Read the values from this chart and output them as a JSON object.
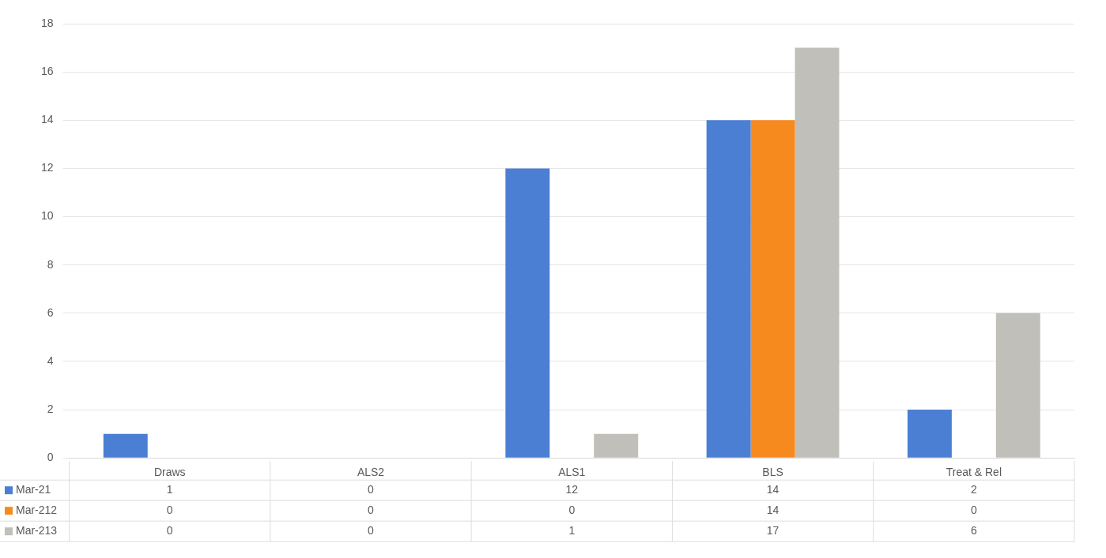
{
  "chart_data": {
    "type": "bar",
    "categories": [
      "Draws",
      "ALS2",
      "ALS1",
      "BLS",
      "Treat & Rel"
    ],
    "series": [
      {
        "name": "Mar-21",
        "color": "#4a7fd4",
        "values": [
          1,
          0,
          12,
          14,
          2
        ]
      },
      {
        "name": "Mar-212",
        "color": "#f78a1e",
        "values": [
          0,
          0,
          0,
          14,
          0
        ]
      },
      {
        "name": "Mar-213",
        "color": "#c0bfb9",
        "values": [
          0,
          0,
          1,
          17,
          6
        ]
      }
    ],
    "ylim": [
      0,
      18
    ],
    "yticks": [
      0,
      2,
      4,
      6,
      8,
      10,
      12,
      14,
      16,
      18
    ],
    "grid": "y",
    "legend": "bottom left",
    "data_labels": true
  }
}
